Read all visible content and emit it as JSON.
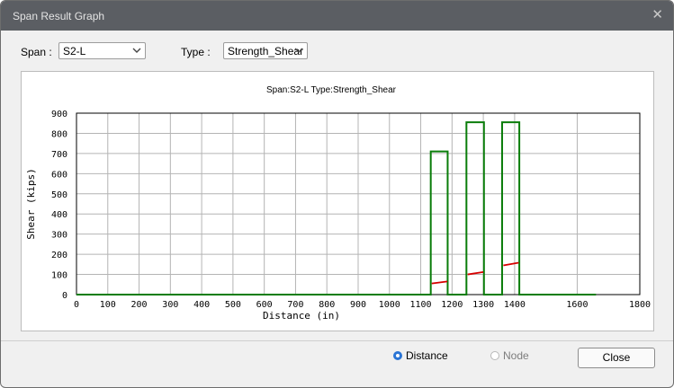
{
  "window": {
    "title": "Span Result Graph",
    "close_icon": "close-icon"
  },
  "controls": {
    "span_label": "Span :",
    "span_value": "S2-L",
    "type_label": "Type :",
    "type_value": "Strength_Shear"
  },
  "chart_data": {
    "type": "line",
    "title": "Span:S2-L        Type:Strength_Shear",
    "xlabel": "Distance (in)",
    "ylabel": "Shear (kips)",
    "xlim": [
      0,
      1800
    ],
    "ylim": [
      0,
      900
    ],
    "xticks": [
      0,
      100,
      200,
      300,
      400,
      500,
      600,
      700,
      800,
      900,
      1000,
      1100,
      1200,
      1300,
      1400,
      1600,
      1800
    ],
    "yticks": [
      0,
      100,
      200,
      300,
      400,
      500,
      600,
      700,
      800,
      900
    ],
    "grid": true,
    "series": [
      {
        "color": "#0a7d0a",
        "points": [
          [
            0,
            0
          ],
          [
            1132,
            0
          ],
          [
            1132,
            710
          ],
          [
            1186,
            710
          ],
          [
            1186,
            0
          ],
          [
            1246,
            0
          ],
          [
            1246,
            855
          ],
          [
            1302,
            855
          ],
          [
            1302,
            0
          ],
          [
            1360,
            0
          ],
          [
            1360,
            855
          ],
          [
            1415,
            855
          ],
          [
            1415,
            0
          ],
          [
            1660,
            0
          ]
        ]
      },
      {
        "color": "#d60000",
        "points": [
          [
            1135,
            55
          ],
          [
            1185,
            65
          ]
        ]
      },
      {
        "color": "#d60000",
        "points": [
          [
            1250,
            100
          ],
          [
            1300,
            112
          ]
        ]
      },
      {
        "color": "#d60000",
        "points": [
          [
            1364,
            145
          ],
          [
            1413,
            158
          ]
        ]
      }
    ]
  },
  "options": {
    "distance_label": "Distance",
    "node_label": "Node",
    "selected": "Distance"
  },
  "buttons": {
    "close_label": "Close"
  }
}
